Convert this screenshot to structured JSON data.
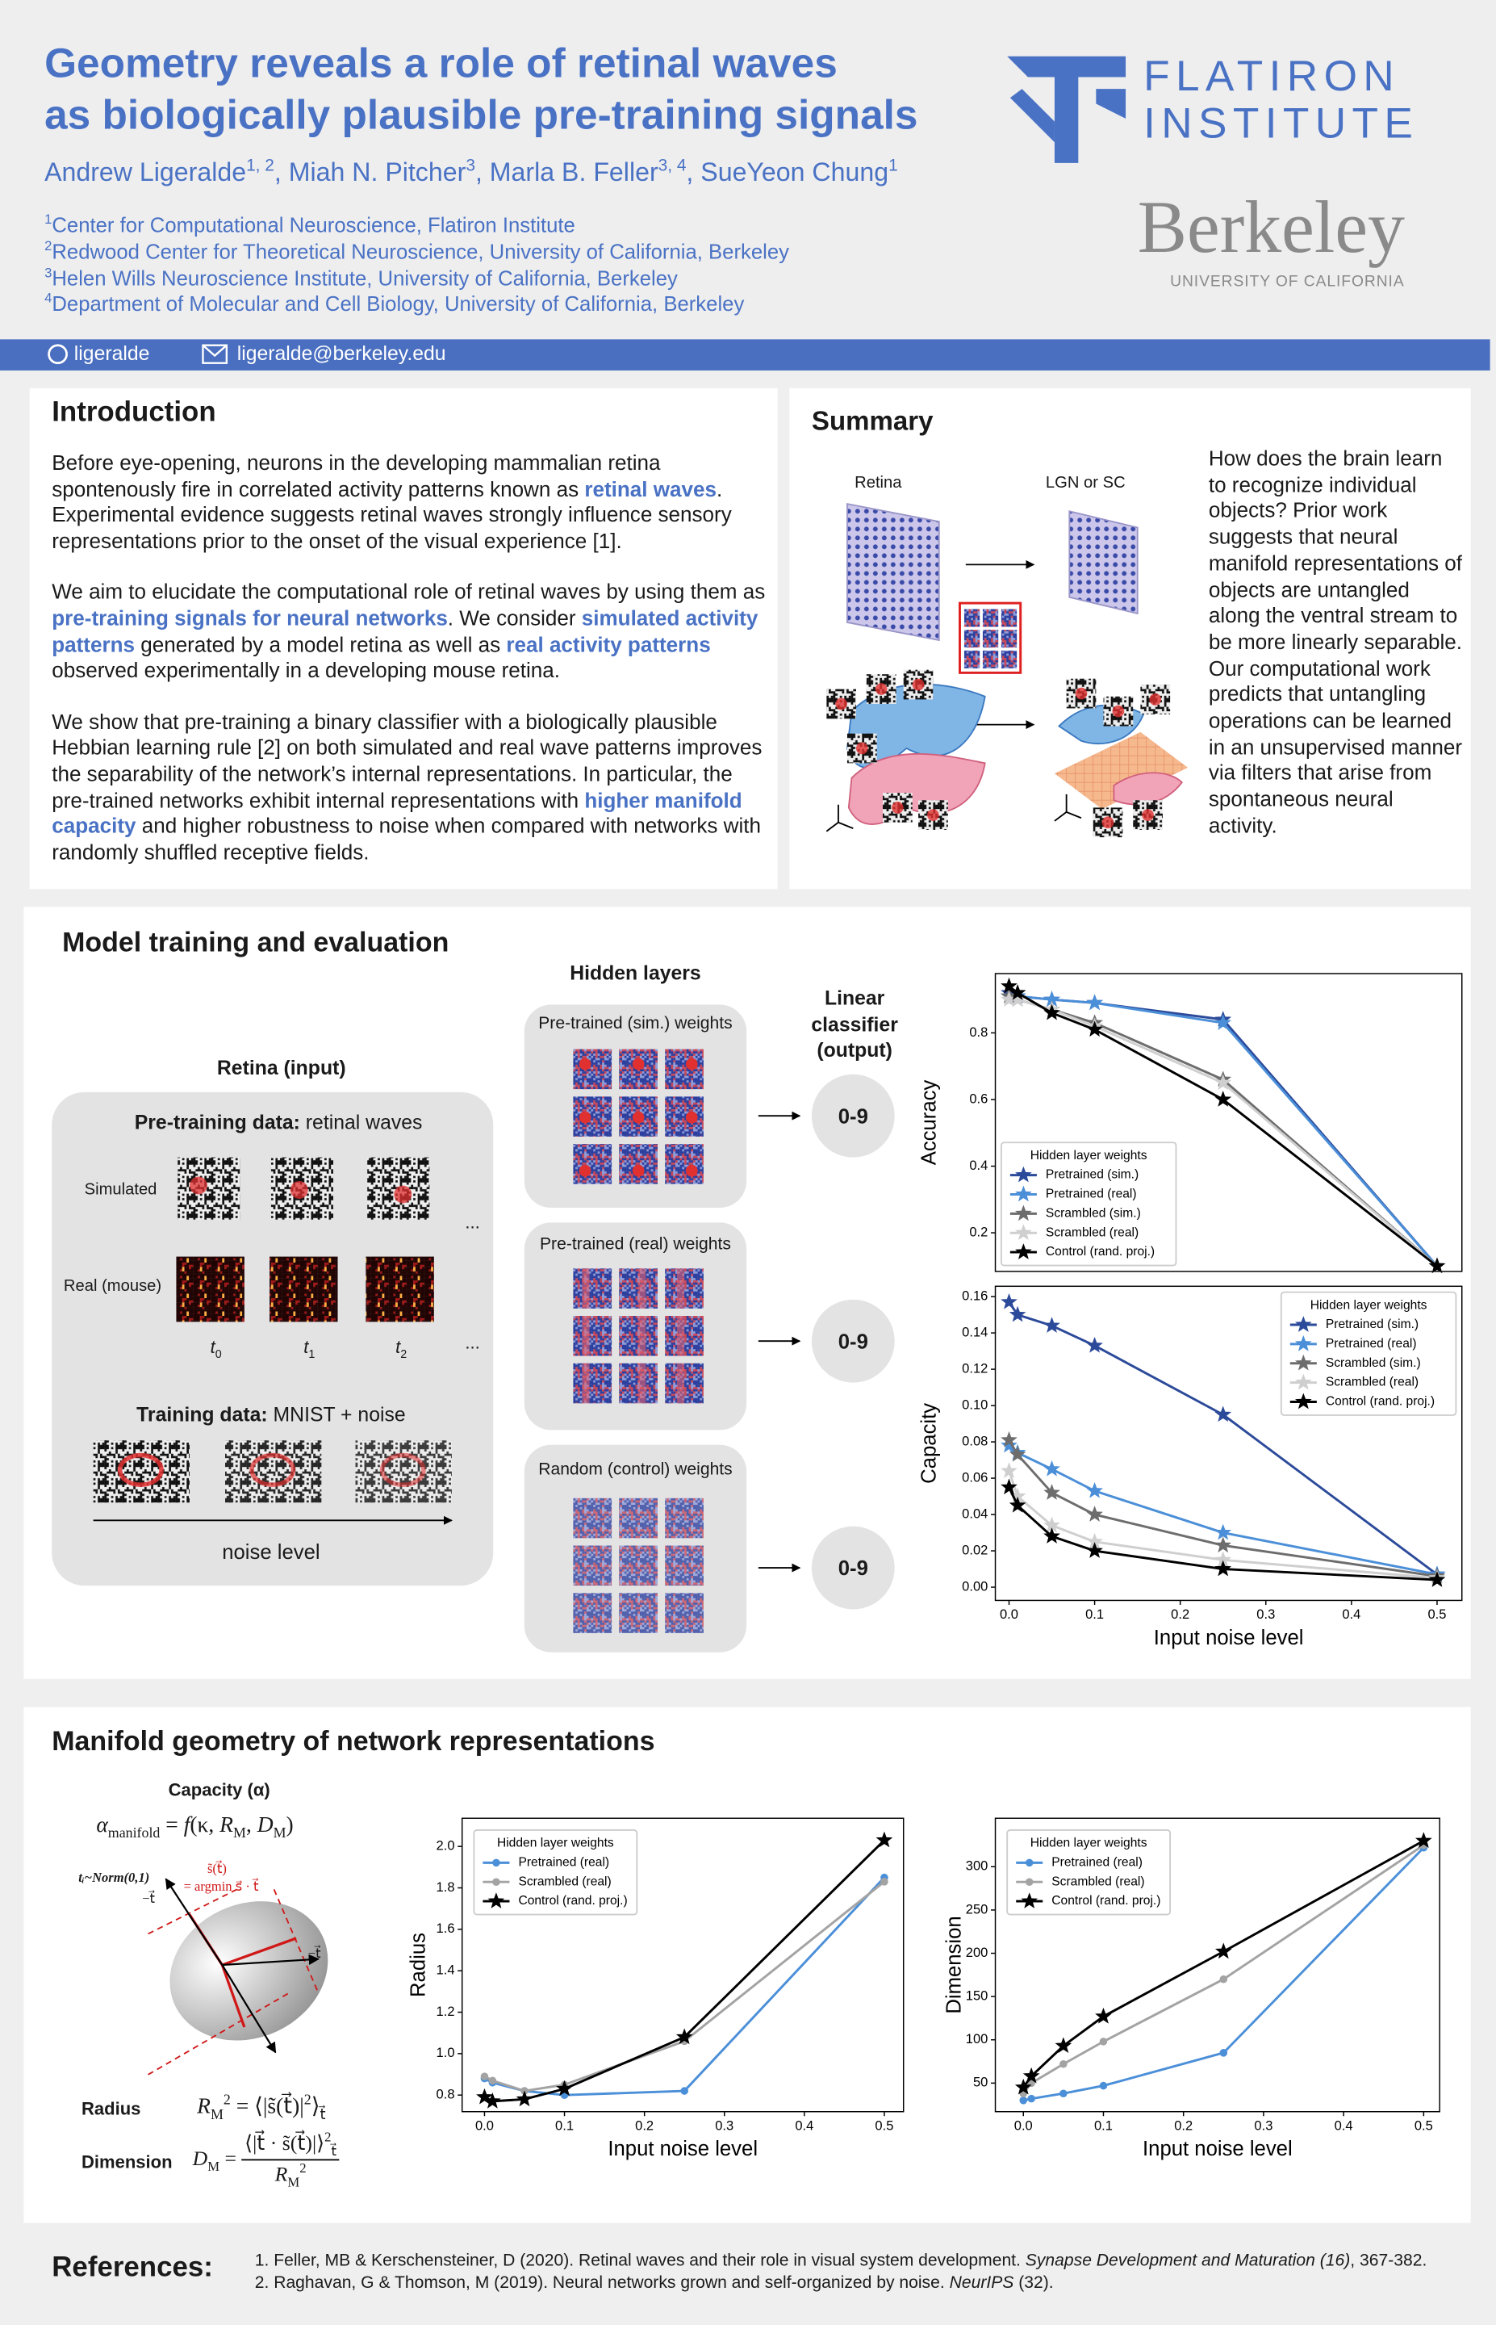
{
  "header": {
    "title": [
      "Geometry reveals a role of retinal waves",
      "as biologically plausible pre-training signals"
    ],
    "authors": [
      {
        "t": "Andrew Ligeralde"
      },
      {
        "t": "1, 2",
        "sup": true
      },
      {
        "t": ", Miah N. Pitcher"
      },
      {
        "t": "3",
        "sup": true
      },
      {
        "t": ", Marla B. Feller"
      },
      {
        "t": "3, 4",
        "sup": true
      },
      {
        "t": ", SueYeon Chung"
      },
      {
        "t": "1",
        "sup": true
      }
    ],
    "affiliations": [
      [
        {
          "t": "1",
          "sup": true
        },
        {
          "t": "Center for Computational Neuroscience, Flatiron Institute"
        }
      ],
      [
        {
          "t": "2",
          "sup": true
        },
        {
          "t": "Redwood Center for Theoretical Neuroscience, University of California, Berkeley"
        }
      ],
      [
        {
          "t": "3",
          "sup": true
        },
        {
          "t": "Helen Wills Neuroscience Institute, University of California, Berkeley"
        }
      ],
      [
        {
          "t": "4",
          "sup": true
        },
        {
          "t": "Department of Molecular and Cell Biology, University of California, Berkeley"
        }
      ]
    ],
    "github": "ligeralde",
    "email": "ligeralde@berkeley.edu",
    "logos": {
      "flatiron": [
        "FLATIRON",
        "INSTITUTE"
      ],
      "berkeley": "Berkeley",
      "berkeley_sub": "UNIVERSITY OF CALIFORNIA"
    }
  },
  "introduction": {
    "title": "Introduction",
    "paragraphs": [
      [
        {
          "t": "Before eye-opening, neurons in the developing mammalian retina spontenously fire in correlated activity patterns known as "
        },
        {
          "t": "retinal waves",
          "em": true
        },
        {
          "t": ". Experimental evidence suggests retinal waves strongly influence sensory representations prior to the onset of the visual experience [1]."
        }
      ],
      [
        {
          "t": "We aim to elucidate the computational role of retinal waves by using them as "
        },
        {
          "t": "pre-training signals for neural networks",
          "em": true
        },
        {
          "t": ". We consider "
        },
        {
          "t": "simulated activity patterns",
          "em": true
        },
        {
          "t": " generated by a model retina as well as "
        },
        {
          "t": "real activity patterns",
          "em": true
        },
        {
          "t": " observed experimentally in a developing mouse retina."
        }
      ],
      [
        {
          "t": "We show that pre-training a binary classifier with a biologically plausible Hebbian learning rule [2] on both simulated and real wave patterns improves the separability of the network’s internal representations. In particular, the pre-trained networks exhibit internal representations with "
        },
        {
          "t": "higher manifold capacity",
          "em": true
        },
        {
          "t": " and higher robustness to noise when compared with networks with randomly shuffled receptive fields."
        }
      ]
    ]
  },
  "summary": {
    "title": "Summary",
    "retina_label": "Retina",
    "target_label": "LGN or SC",
    "text": "How does the brain learn to recognize individual objects? Prior work suggests that neural manifold representations of objects are untangled along the ventral stream to be more linearly separable. Our computational work predicts that untangling operations can be learned in an unsupervised manner via filters that arise from spontaneous neural activity."
  },
  "model": {
    "title": "Model training and evaluation",
    "retina_title": "Retina (input)",
    "pretraining": [
      {
        "t": "Pre-training data:",
        "b": true
      },
      {
        "t": " retinal waves"
      }
    ],
    "simulated": "Simulated",
    "real": "Real (mouse)",
    "times": [
      [
        {
          "t": "t",
          "i": true
        },
        {
          "t": "0",
          "sub": true
        }
      ],
      [
        {
          "t": "t",
          "i": true
        },
        {
          "t": "1",
          "sub": true
        }
      ],
      [
        {
          "t": "t",
          "i": true
        },
        {
          "t": "2",
          "sub": true
        }
      ]
    ],
    "ellipsis": "...",
    "training": [
      {
        "t": "Training data:",
        "b": true
      },
      {
        "t": " MNIST + noise"
      }
    ],
    "noise_level": "noise level",
    "hidden_title": "Hidden layers",
    "hidden": [
      "Pre-trained (sim.) weights",
      "Pre-trained (real) weights",
      "Random (control) weights"
    ],
    "classifier": "Linear classifier (output)",
    "outputs": [
      "0-9",
      "0-9",
      "0-9"
    ]
  },
  "manifold": {
    "title": "Manifold geometry of network representations",
    "capacity_title": "Capacity (α)",
    "capacity_formula": [
      {
        "t": "α",
        "i": true
      },
      {
        "t": "manifold",
        "sub": true
      },
      {
        "t": " = "
      },
      {
        "t": "f",
        "i": true
      },
      {
        "t": "(κ, "
      },
      {
        "t": "R",
        "i": true
      },
      {
        "t": "M",
        "sub": true
      },
      {
        "t": ", "
      },
      {
        "t": "D",
        "i": true
      },
      {
        "t": "M",
        "sub": true
      },
      {
        "t": ")"
      }
    ],
    "diagram_labels": [
      "tᵢ~Norm(0,1)",
      "s̃(t⃗)",
      "= argmin s⃗ · t⃗",
      "−t⃗",
      "−t⃗"
    ],
    "radius_label": "Radius",
    "radius_formula": [
      {
        "t": "R",
        "i": true
      },
      {
        "t": "M",
        "sub": true
      },
      {
        "t": "2",
        "sup": true
      },
      {
        "t": " = ⟨|s̃(t⃗)|"
      },
      {
        "t": "2",
        "sup": true
      },
      {
        "t": "⟩"
      },
      {
        "t": "t⃗",
        "sub": true
      }
    ],
    "dimension_label": "Dimension",
    "dimension_formula": {
      "lhs": [
        {
          "t": "D",
          "i": true
        },
        {
          "t": "M",
          "sub": true
        },
        {
          "t": " = "
        }
      ],
      "num": [
        {
          "t": "⟨|t⃗ · s̃(t⃗)|⟩"
        },
        {
          "t": "2",
          "sup": true
        },
        {
          "t": "t⃗",
          "sub": true
        }
      ],
      "den": [
        {
          "t": "R",
          "i": true
        },
        {
          "t": "M",
          "sub": true
        },
        {
          "t": "2",
          "sup": true
        }
      ]
    }
  },
  "references": {
    "title": "References:",
    "items": [
      [
        {
          "t": "1. Feller, MB & Kerschensteiner, D (2020). Retinal waves and their role in visual system development. "
        },
        {
          "t": "Synapse Development and Maturation (16)",
          "i": true
        },
        {
          "t": ", 367-382."
        }
      ],
      [
        {
          "t": "2. Raghavan, G & Thomson, M (2019). Neural networks grown and self-organized by noise. "
        },
        {
          "t": "NeurIPS",
          "i": true
        },
        {
          "t": " (32)."
        }
      ]
    ]
  },
  "chart_data": [
    {
      "type": "line",
      "ylabel": "Accuracy",
      "legend_title": "Hidden layer weights",
      "legend": "lower left",
      "x": [
        0,
        0.01,
        0.05,
        0.1,
        0.25,
        0.5
      ],
      "xlim": [
        -0.016,
        0.529
      ],
      "ylim": [
        0.084,
        0.978
      ],
      "yticks": [
        0.2,
        0.4,
        0.6,
        0.8
      ],
      "series": [
        {
          "name": "Pretrained (sim.)",
          "color": "#2c4a9a",
          "marker": "star",
          "values": [
            0.92,
            0.91,
            0.9,
            0.89,
            0.84,
            0.1
          ]
        },
        {
          "name": "Pretrained (real)",
          "color": "#4b8fd8",
          "marker": "star",
          "values": [
            0.91,
            0.91,
            0.9,
            0.89,
            0.83,
            0.1
          ]
        },
        {
          "name": "Scrambled (sim.)",
          "color": "#6d6d6d",
          "marker": "star",
          "values": [
            0.91,
            0.9,
            0.87,
            0.83,
            0.66,
            0.1
          ]
        },
        {
          "name": "Scrambled (real)",
          "color": "#cfcfcf",
          "marker": "star",
          "values": [
            0.9,
            0.9,
            0.87,
            0.82,
            0.65,
            0.1
          ]
        },
        {
          "name": "Control (rand. proj.)",
          "color": "#000000",
          "marker": "star",
          "values": [
            0.94,
            0.92,
            0.86,
            0.81,
            0.6,
            0.1
          ]
        }
      ]
    },
    {
      "type": "line",
      "ylabel": "Capacity",
      "xlabel": "Input noise level",
      "legend_title": "Hidden layer weights",
      "legend": "upper right",
      "x": [
        0,
        0.01,
        0.05,
        0.1,
        0.25,
        0.5
      ],
      "xlim": [
        -0.016,
        0.529
      ],
      "ylim": [
        -0.0073,
        0.1657
      ],
      "xticks": [
        {
          "value": 0,
          "label": "0.0"
        },
        0.1,
        0.2,
        0.3,
        0.4,
        0.5
      ],
      "yticks": [
        {
          "value": 0,
          "label": "0.00"
        },
        {
          "value": 0.02,
          "label": "0.02"
        },
        {
          "value": 0.04,
          "label": "0.04"
        },
        {
          "value": 0.06,
          "label": "0.06"
        },
        {
          "value": 0.08,
          "label": "0.08"
        },
        {
          "value": 0.1,
          "label": "0.10"
        },
        {
          "value": 0.12,
          "label": "0.12"
        },
        {
          "value": 0.14,
          "label": "0.14"
        },
        {
          "value": 0.16,
          "label": "0.16"
        }
      ],
      "series": [
        {
          "name": "Pretrained (sim.)",
          "color": "#2c4a9a",
          "marker": "star",
          "values": [
            0.157,
            0.15,
            0.144,
            0.133,
            0.095,
            0.007
          ]
        },
        {
          "name": "Pretrained (real)",
          "color": "#4b8fd8",
          "marker": "star",
          "values": [
            0.078,
            0.074,
            0.065,
            0.053,
            0.03,
            0.007
          ]
        },
        {
          "name": "Scrambled (sim.)",
          "color": "#6d6d6d",
          "marker": "star",
          "values": [
            0.081,
            0.073,
            0.052,
            0.04,
            0.023,
            0.006
          ]
        },
        {
          "name": "Scrambled (real)",
          "color": "#cfcfcf",
          "marker": "star",
          "values": [
            0.064,
            0.05,
            0.034,
            0.025,
            0.015,
            0.005
          ]
        },
        {
          "name": "Control (rand. proj.)",
          "color": "#000000",
          "marker": "star",
          "values": [
            0.055,
            0.045,
            0.028,
            0.02,
            0.01,
            0.004
          ]
        }
      ]
    },
    {
      "type": "line",
      "ylabel": "Radius",
      "xlabel": "Input noise level",
      "legend_title": "Hidden layer weights",
      "legend": "upper left",
      "x": [
        0,
        0.01,
        0.05,
        0.1,
        0.25,
        0.5
      ],
      "xlim": [
        -0.028,
        0.524
      ],
      "ylim": [
        0.72,
        2.136
      ],
      "xticks": [
        {
          "value": 0,
          "label": "0.0"
        },
        0.1,
        0.2,
        0.3,
        0.4,
        0.5
      ],
      "yticks": [
        0.8,
        {
          "value": 1,
          "label": "1.0"
        },
        1.2,
        1.4,
        1.6,
        1.8,
        {
          "value": 2,
          "label": "2.0"
        }
      ],
      "series": [
        {
          "name": "Pretrained (real)",
          "color": "#4b8fd8",
          "marker": "circle",
          "values": [
            0.88,
            0.86,
            0.82,
            0.8,
            0.82,
            1.85
          ]
        },
        {
          "name": "Scrambled (real)",
          "color": "#a3a3a3",
          "marker": "circle",
          "values": [
            0.89,
            0.87,
            0.82,
            0.85,
            1.06,
            1.83
          ]
        },
        {
          "name": "Control (rand. proj.)",
          "color": "#000000",
          "marker": "star",
          "values": [
            0.79,
            0.77,
            0.78,
            0.83,
            1.08,
            2.03
          ]
        }
      ]
    },
    {
      "type": "line",
      "ylabel": "Dimension",
      "xlabel": "Input noise level",
      "legend_title": "Hidden layer weights",
      "legend": "upper left",
      "x": [
        0,
        0.01,
        0.05,
        0.1,
        0.25,
        0.5
      ],
      "xlim": [
        -0.035,
        0.52
      ],
      "ylim": [
        17,
        356
      ],
      "xticks": [
        {
          "value": 0,
          "label": "0.0"
        },
        0.1,
        0.2,
        0.3,
        0.4,
        0.5
      ],
      "yticks": [
        50,
        100,
        150,
        200,
        250,
        300
      ],
      "series": [
        {
          "name": "Pretrained (real)",
          "color": "#4b8fd8",
          "marker": "circle",
          "values": [
            30,
            32,
            38,
            47,
            85,
            322
          ]
        },
        {
          "name": "Scrambled (real)",
          "color": "#a3a3a3",
          "marker": "circle",
          "values": [
            38,
            50,
            72,
            98,
            170,
            325
          ]
        },
        {
          "name": "Control (rand. proj.)",
          "color": "#000000",
          "marker": "star",
          "values": [
            45,
            58,
            93,
            127,
            202,
            330
          ]
        }
      ]
    }
  ]
}
